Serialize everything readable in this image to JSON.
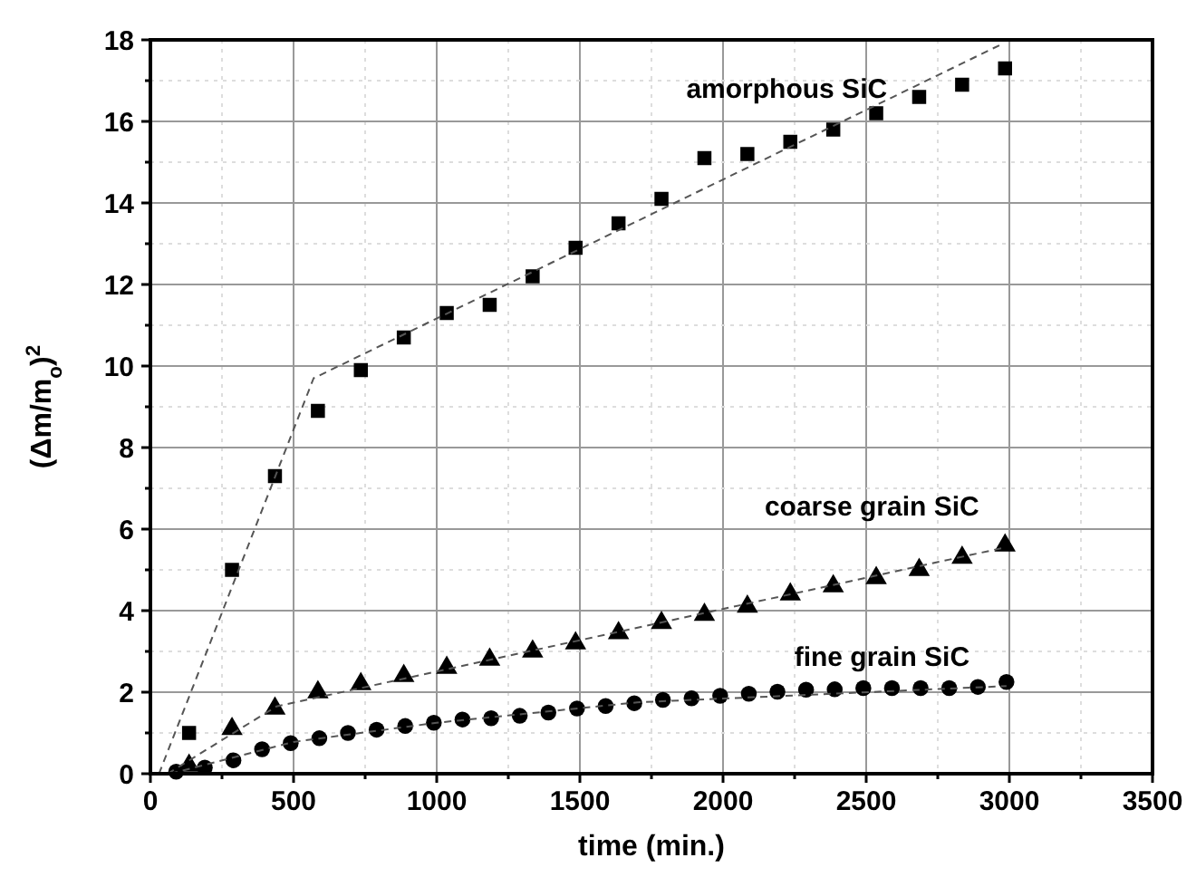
{
  "chart_data": {
    "type": "scatter",
    "xlabel": "time (min.)",
    "ylabel": "(Δm/m$_{o}$)$^{2}$",
    "xlim": [
      0,
      3500
    ],
    "ylim": [
      0,
      18
    ],
    "xticks": [
      0,
      {
        "value": 250,
        "label": null
      },
      500,
      {
        "value": 750,
        "label": null
      },
      1000,
      {
        "value": 1250,
        "label": null
      },
      1500,
      {
        "value": 1750,
        "label": null
      },
      2000,
      {
        "value": 2250,
        "label": null
      },
      2500,
      {
        "value": 2750,
        "label": null
      },
      3000,
      {
        "value": 3250,
        "label": null
      },
      3500
    ],
    "yticks": [
      0,
      {
        "value": 1,
        "label": null
      },
      2,
      {
        "value": 3,
        "label": null
      },
      4,
      {
        "value": 5,
        "label": null
      },
      6,
      {
        "value": 7,
        "label": null
      },
      8,
      {
        "value": 9,
        "label": null
      },
      10,
      {
        "value": 11,
        "label": null
      },
      12,
      {
        "value": 13,
        "label": null
      },
      14,
      {
        "value": 15,
        "label": null
      },
      16,
      {
        "value": 17,
        "label": null
      },
      18
    ],
    "grid": true,
    "series": [
      {
        "marker": "square",
        "color": "#000000",
        "x": [
          135,
          285,
          435,
          585,
          735,
          885,
          1035,
          1185,
          1335,
          1485,
          1635,
          1785,
          1935,
          2085,
          2235,
          2385,
          2535,
          2685,
          2835,
          2985
        ],
        "values": [
          1.0,
          5.0,
          7.3,
          8.9,
          9.9,
          10.7,
          11.3,
          11.5,
          12.2,
          12.9,
          13.5,
          14.1,
          15.1,
          15.2,
          15.5,
          15.8,
          16.2,
          16.6,
          16.9,
          17.3
        ]
      },
      {
        "marker": "triangle",
        "color": "#000000",
        "x": [
          135,
          285,
          435,
          585,
          735,
          885,
          1035,
          1185,
          1335,
          1485,
          1635,
          1785,
          1935,
          2085,
          2235,
          2385,
          2535,
          2685,
          2835,
          2985
        ],
        "values": [
          0.2,
          1.1,
          1.6,
          2.0,
          2.2,
          2.4,
          2.6,
          2.8,
          3.0,
          3.2,
          3.45,
          3.7,
          3.9,
          4.1,
          4.4,
          4.6,
          4.8,
          5.0,
          5.3,
          5.6
        ]
      },
      {
        "marker": "circle",
        "color": "#000000",
        "x": [
          90,
          190,
          290,
          390,
          490,
          590,
          690,
          790,
          890,
          990,
          1090,
          1190,
          1290,
          1390,
          1490,
          1590,
          1690,
          1790,
          1890,
          1990,
          2090,
          2190,
          2290,
          2390,
          2490,
          2590,
          2690,
          2790,
          2890,
          2990
        ],
        "values": [
          0.05,
          0.15,
          0.33,
          0.6,
          0.75,
          0.87,
          1.0,
          1.08,
          1.17,
          1.25,
          1.33,
          1.36,
          1.42,
          1.5,
          1.6,
          1.66,
          1.73,
          1.81,
          1.85,
          1.91,
          1.96,
          2.01,
          2.06,
          2.07,
          2.1,
          2.1,
          2.1,
          2.1,
          2.13,
          2.25
        ]
      },
      {
        "type": "line",
        "line_style": "dashed",
        "marker": "none",
        "color": "#555555",
        "x": [
          30,
          570,
          2975
        ],
        "values": [
          0,
          9.7,
          17.9
        ]
      },
      {
        "type": "line",
        "line_style": "dashed",
        "marker": "none",
        "color": "#555555",
        "x": [
          60,
          440,
          2985
        ],
        "values": [
          0,
          1.65,
          5.55
        ]
      },
      {
        "type": "line",
        "line_style": "dashed",
        "marker": "none",
        "color": "#555555",
        "x": [
          70,
          500,
          1000,
          1700,
          2990
        ],
        "values": [
          0,
          0.78,
          1.25,
          1.75,
          2.15
        ]
      }
    ],
    "annotations": [
      "amorphous SiC",
      "coarse grain SiC",
      "fine grain SiC"
    ]
  }
}
